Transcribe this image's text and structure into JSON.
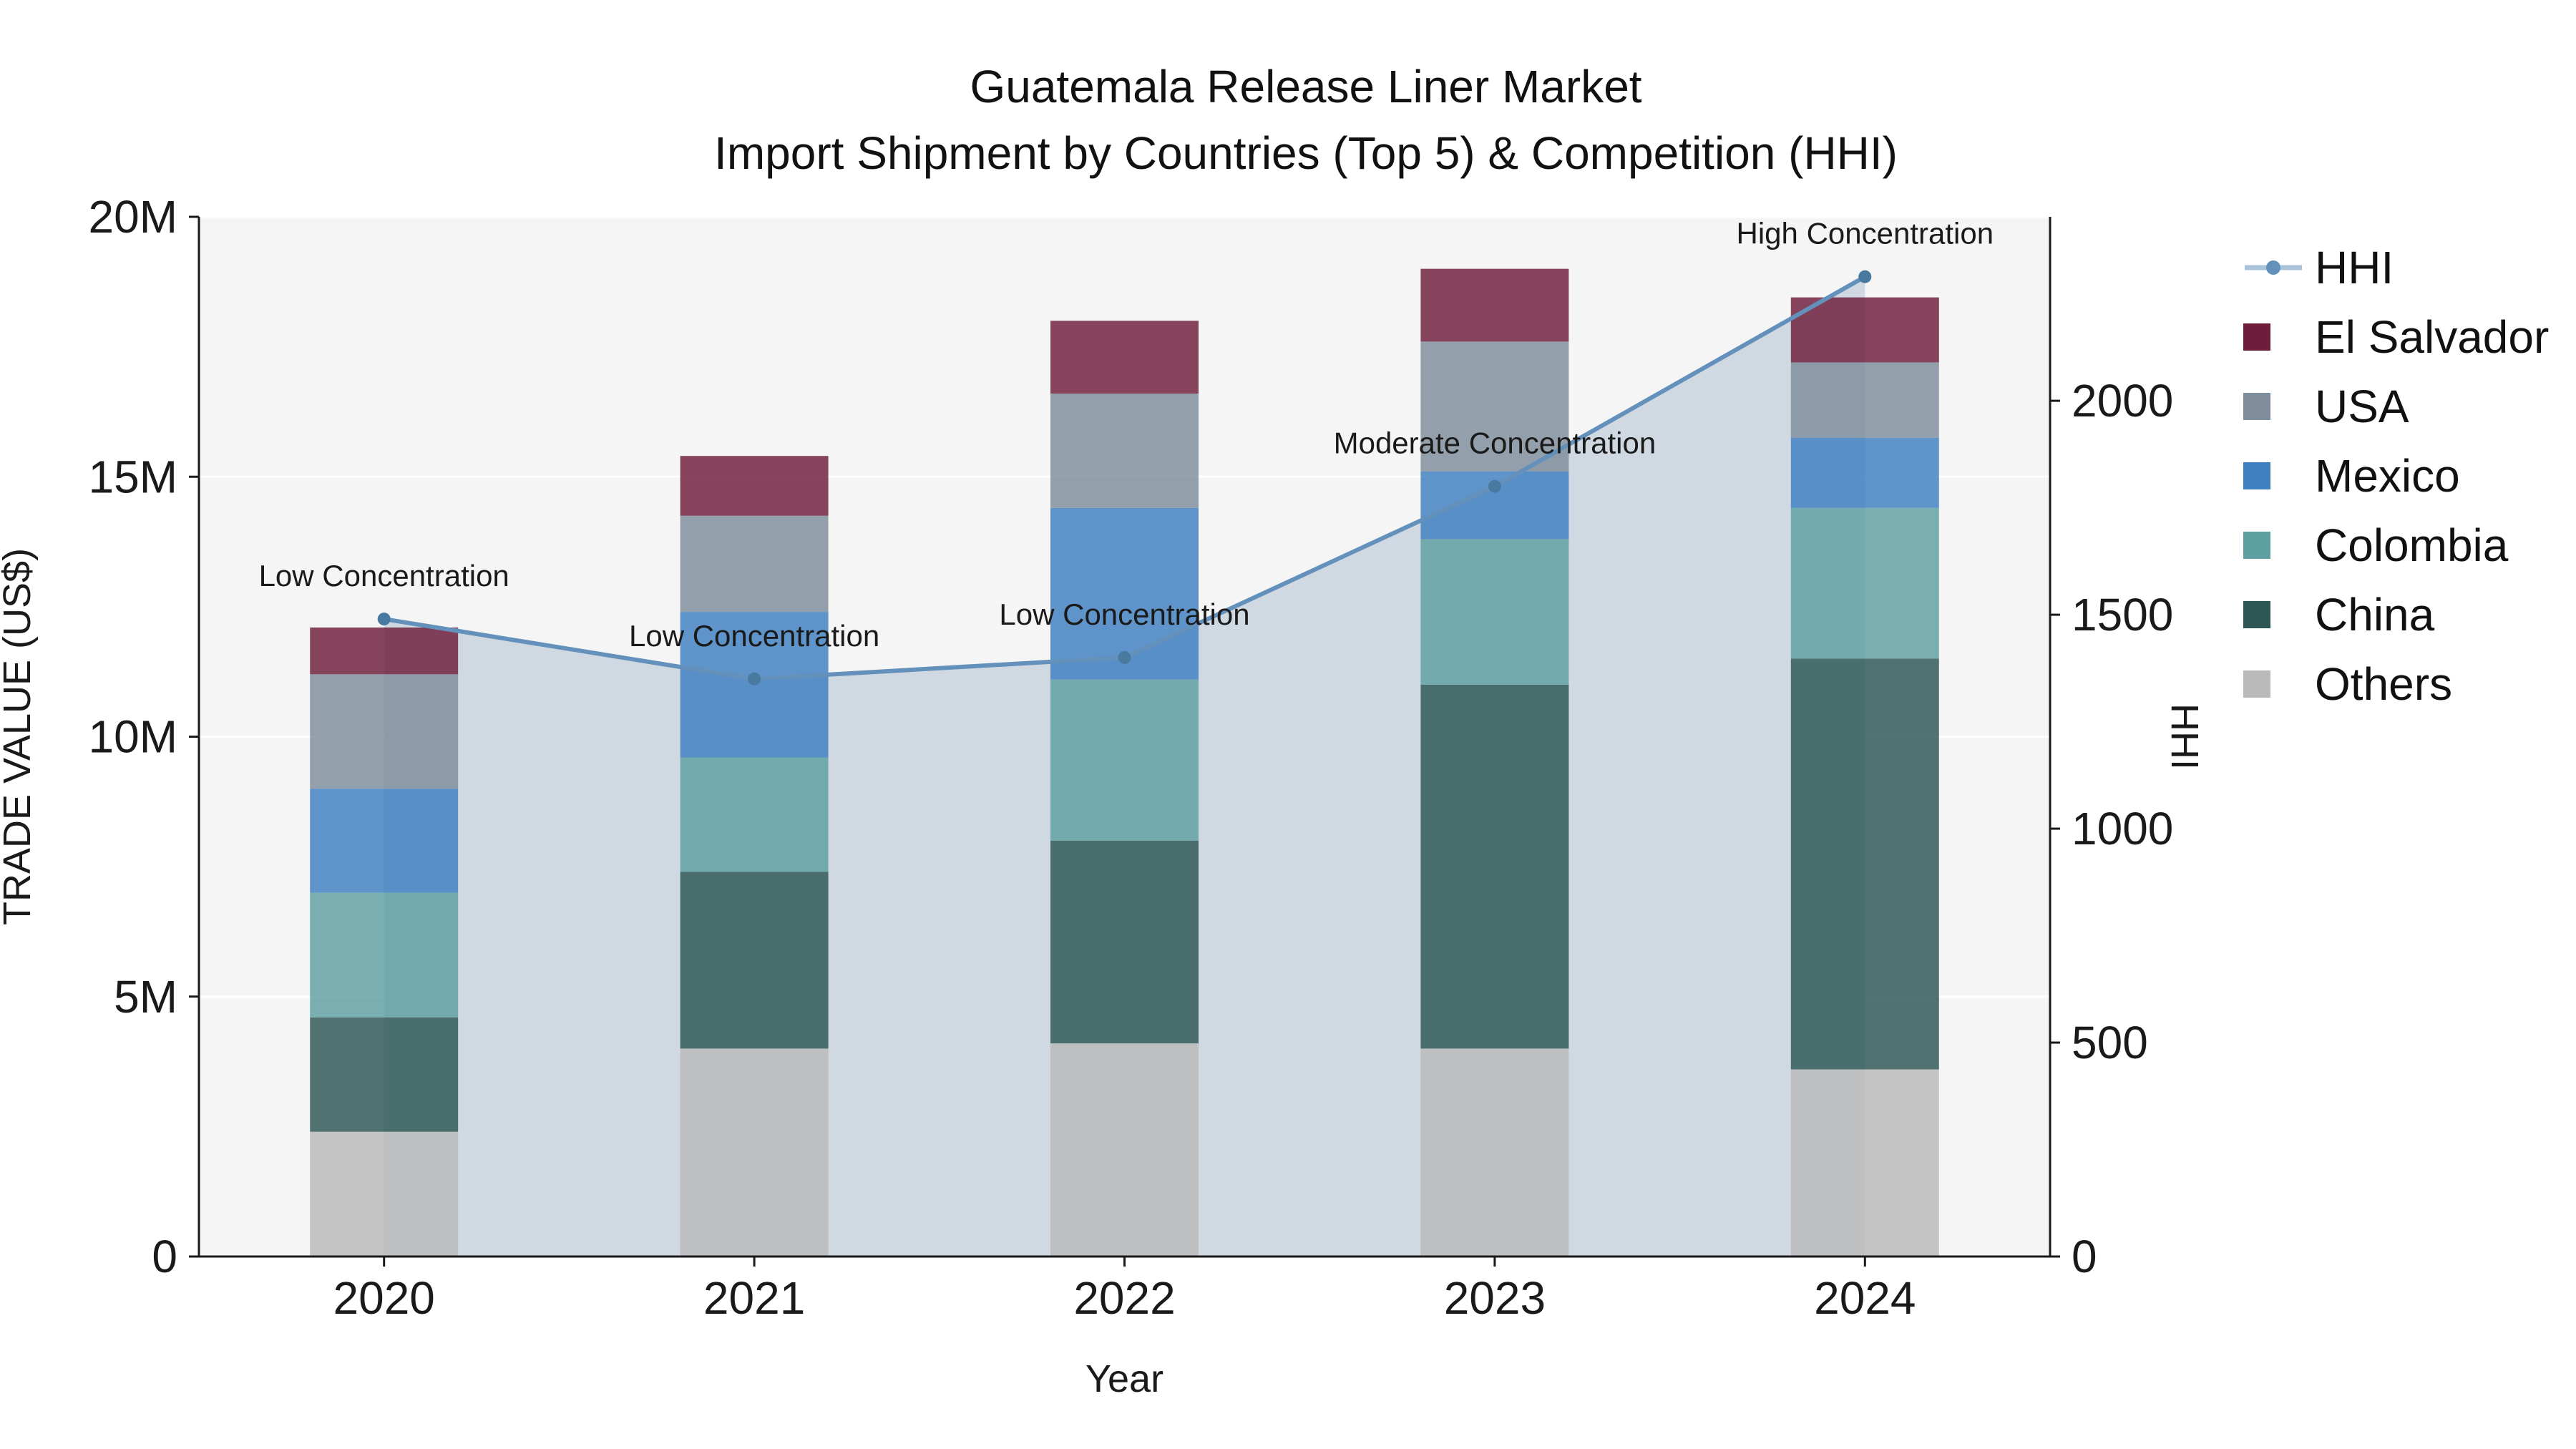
{
  "title": {
    "line1": "Guatemala Release Liner Market",
    "line2": "Import Shipment by Countries (Top 5) & Competition (HHI)"
  },
  "chart_data": {
    "type": "bar",
    "subtype": "stacked-bar-with-line-area",
    "categories": [
      "2020",
      "2021",
      "2022",
      "2023",
      "2024"
    ],
    "xlabel": "Year",
    "ylabel_left": "TRADE VALUE (US$)",
    "ylabel_right": "HHI",
    "unit_left": "US$ millions",
    "ylim_left_musd": [
      0,
      20
    ],
    "ylim_right": [
      0,
      2430
    ],
    "left_ticks": [
      {
        "v": 0,
        "label": "0"
      },
      {
        "v": 5,
        "label": "5M"
      },
      {
        "v": 10,
        "label": "10M"
      },
      {
        "v": 15,
        "label": "15M"
      },
      {
        "v": 20,
        "label": "20M"
      }
    ],
    "right_ticks": [
      {
        "v": 0,
        "label": "0"
      },
      {
        "v": 500,
        "label": "500"
      },
      {
        "v": 1000,
        "label": "1000"
      },
      {
        "v": 1500,
        "label": "1500"
      },
      {
        "v": 2000,
        "label": "2000"
      }
    ],
    "stack_order": "bottom to top",
    "series": [
      {
        "name": "Others",
        "color": "#b9b9b9",
        "values_musd": [
          2.4,
          4.0,
          4.1,
          4.0,
          3.6
        ]
      },
      {
        "name": "China",
        "color": "#2c5553",
        "values_musd": [
          2.2,
          3.4,
          3.9,
          7.0,
          7.9
        ]
      },
      {
        "name": "Colombia",
        "color": "#5ea0a1",
        "values_musd": [
          2.4,
          2.2,
          3.1,
          2.8,
          2.9
        ]
      },
      {
        "name": "Mexico",
        "color": "#3d7fc1",
        "values_musd": [
          2.0,
          2.8,
          3.3,
          1.3,
          1.35
        ]
      },
      {
        "name": "USA",
        "color": "#7e8c9b",
        "values_musd": [
          2.2,
          1.85,
          2.2,
          2.5,
          1.45
        ]
      },
      {
        "name": "El Salvador",
        "color": "#6e1d3a",
        "values_musd": [
          0.9,
          1.15,
          1.4,
          1.4,
          1.25
        ]
      }
    ],
    "hhi": {
      "name": "HHI",
      "values": [
        1490,
        1350,
        1400,
        1800,
        2290
      ],
      "line_color": "#6391bb",
      "marker_color": "#49799f",
      "fill_color": "#ccd5df"
    },
    "annotations": [
      {
        "label": "Low Concentration",
        "category": "2020"
      },
      {
        "label": "Low Concentration",
        "category": "2021"
      },
      {
        "label": "Low Concentration",
        "category": "2022"
      },
      {
        "label": "Moderate Concentration",
        "category": "2023"
      },
      {
        "label": "High Concentration",
        "category": "2024"
      }
    ]
  },
  "legend": {
    "items": [
      {
        "label": "HHI",
        "symbol": "line",
        "color": "#6391bb"
      },
      {
        "label": "El Salvador",
        "symbol": "square",
        "color": "#6e1d3a"
      },
      {
        "label": "USA",
        "symbol": "square",
        "color": "#7e8c9b"
      },
      {
        "label": "Mexico",
        "symbol": "square",
        "color": "#3d7fc1"
      },
      {
        "label": "Colombia",
        "symbol": "square",
        "color": "#5ea0a1"
      },
      {
        "label": "China",
        "symbol": "square",
        "color": "#2c5553"
      },
      {
        "label": "Others",
        "symbol": "square",
        "color": "#b9b9b9"
      }
    ]
  },
  "colors": {
    "plot_bg": "#f5f5f5",
    "grid": "#ffffff",
    "axis": "#1a1a1a",
    "text": "#1a1a1a"
  }
}
